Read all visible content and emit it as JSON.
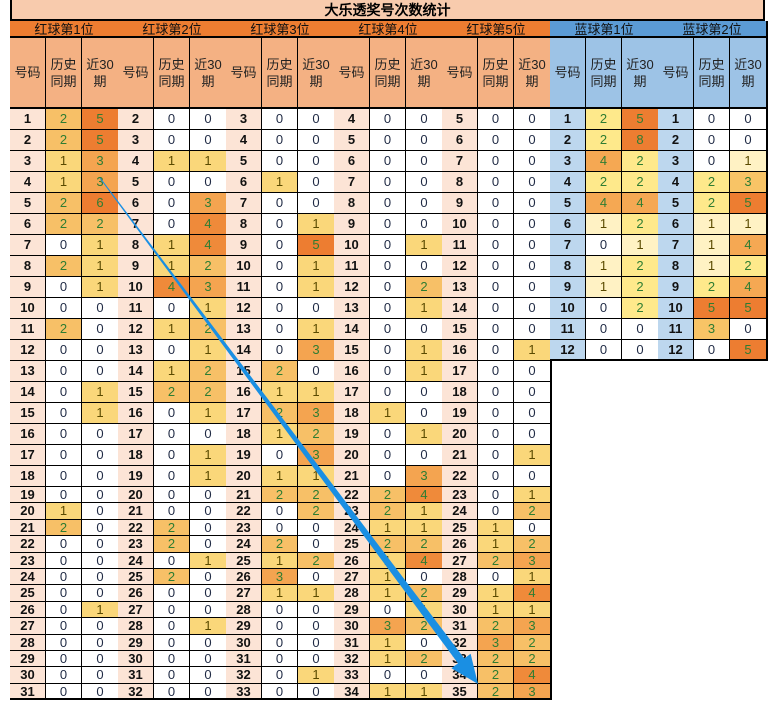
{
  "title": "大乐透奖号次数统计",
  "subheaders": {
    "number": "号码",
    "history": "历史同期",
    "recent": "近30期"
  },
  "colors": {
    "red_header": "#ed7d31",
    "red_subheader": "#f4b183",
    "red_number_bg": "#fce4d6",
    "blue_header": "#5b9bd5",
    "blue_subheader": "#9dc3e6",
    "blue_number_bg": "#bdd7ee",
    "red_scale": [
      "#ffffff",
      "#fad77a",
      "#f7c067",
      "#f4a450",
      "#ef8a3a",
      "#ed7d31"
    ],
    "blue_scale": [
      "#ffffff",
      "#fff2c4",
      "#fee98b",
      "#f8c466",
      "#f5a853",
      "#ed7d31"
    ],
    "text_zero": "#1f2a44",
    "text_one": "#5a4a00",
    "text_many": "#2e7d32",
    "arrow": "#1a8fe3"
  },
  "red_groups": [
    {
      "title": "红球第1位",
      "nums": [
        "1",
        "2",
        "3",
        "4",
        "5",
        "6",
        "7",
        "8",
        "9",
        "10",
        "11",
        "12",
        "13",
        "14",
        "15",
        "16",
        "17",
        "18",
        "19",
        "20",
        "21",
        "22",
        "23",
        "24",
        "25",
        "26",
        "27",
        "28",
        "29",
        "30",
        "31"
      ],
      "history": [
        2,
        2,
        1,
        1,
        2,
        2,
        0,
        2,
        0,
        0,
        2,
        0,
        0,
        0,
        0,
        0,
        0,
        0,
        0,
        1,
        2,
        0,
        0,
        0,
        0,
        0,
        0,
        0,
        0,
        0,
        0
      ],
      "recent": [
        5,
        5,
        3,
        3,
        6,
        2,
        1,
        1,
        1,
        0,
        0,
        0,
        0,
        1,
        1,
        0,
        0,
        0,
        0,
        0,
        0,
        0,
        0,
        0,
        0,
        1,
        0,
        0,
        0,
        0,
        0
      ]
    },
    {
      "title": "红球第2位",
      "nums": [
        "2",
        "3",
        "4",
        "5",
        "6",
        "7",
        "8",
        "9",
        "10",
        "11",
        "12",
        "13",
        "14",
        "15",
        "16",
        "17",
        "18",
        "19",
        "20",
        "21",
        "22",
        "23",
        "24",
        "25",
        "26",
        "27",
        "28",
        "29",
        "30",
        "31",
        "32"
      ],
      "history": [
        0,
        0,
        1,
        0,
        0,
        0,
        1,
        1,
        4,
        0,
        1,
        0,
        1,
        2,
        0,
        0,
        0,
        0,
        0,
        0,
        2,
        2,
        0,
        2,
        0,
        0,
        0,
        0,
        0,
        0,
        0
      ],
      "recent": [
        0,
        0,
        1,
        0,
        3,
        4,
        4,
        2,
        3,
        1,
        2,
        1,
        2,
        2,
        1,
        0,
        1,
        1,
        0,
        0,
        0,
        0,
        1,
        0,
        0,
        0,
        1,
        0,
        0,
        0,
        0
      ]
    },
    {
      "title": "红球第3位",
      "nums": [
        "3",
        "4",
        "5",
        "6",
        "7",
        "8",
        "9",
        "10",
        "11",
        "12",
        "13",
        "14",
        "15",
        "16",
        "17",
        "18",
        "19",
        "20",
        "21",
        "22",
        "23",
        "24",
        "25",
        "26",
        "27",
        "28",
        "29",
        "30",
        "31",
        "32",
        "33"
      ],
      "history": [
        0,
        0,
        0,
        1,
        0,
        0,
        0,
        0,
        0,
        0,
        0,
        0,
        2,
        1,
        2,
        1,
        0,
        1,
        2,
        0,
        0,
        2,
        1,
        3,
        1,
        0,
        0,
        0,
        0,
        0,
        0
      ],
      "recent": [
        0,
        0,
        0,
        0,
        0,
        1,
        5,
        1,
        1,
        0,
        1,
        3,
        0,
        1,
        3,
        2,
        3,
        1,
        2,
        2,
        0,
        0,
        2,
        0,
        1,
        0,
        0,
        0,
        0,
        1,
        0
      ]
    },
    {
      "title": "红球第4位",
      "nums": [
        "4",
        "5",
        "6",
        "7",
        "8",
        "9",
        "10",
        "11",
        "12",
        "13",
        "14",
        "15",
        "16",
        "17",
        "18",
        "19",
        "20",
        "21",
        "22",
        "23",
        "24",
        "25",
        "26",
        "27",
        "28",
        "29",
        "30",
        "31",
        "32",
        "33",
        "34"
      ],
      "history": [
        0,
        0,
        0,
        0,
        0,
        0,
        0,
        0,
        0,
        0,
        0,
        0,
        0,
        0,
        1,
        0,
        0,
        0,
        2,
        2,
        1,
        2,
        1,
        1,
        1,
        0,
        3,
        1,
        1,
        0,
        1
      ],
      "recent": [
        0,
        0,
        0,
        0,
        0,
        0,
        1,
        0,
        2,
        1,
        0,
        1,
        1,
        0,
        0,
        1,
        0,
        3,
        4,
        1,
        1,
        2,
        4,
        0,
        2,
        1,
        2,
        0,
        2,
        0,
        1
      ]
    },
    {
      "title": "红球第5位",
      "nums": [
        "5",
        "6",
        "7",
        "8",
        "9",
        "10",
        "11",
        "12",
        "13",
        "14",
        "15",
        "16",
        "17",
        "18",
        "19",
        "20",
        "21",
        "22",
        "23",
        "24",
        "25",
        "26",
        "27",
        "28",
        "29",
        "30",
        "31",
        "32",
        "33",
        "34",
        "35"
      ],
      "history": [
        0,
        0,
        0,
        0,
        0,
        0,
        0,
        0,
        0,
        0,
        0,
        0,
        0,
        0,
        0,
        0,
        0,
        0,
        0,
        0,
        1,
        1,
        2,
        0,
        1,
        1,
        2,
        3,
        2,
        2,
        2
      ],
      "recent": [
        0,
        0,
        0,
        0,
        0,
        0,
        0,
        0,
        0,
        0,
        0,
        1,
        0,
        0,
        0,
        0,
        1,
        0,
        1,
        2,
        0,
        2,
        3,
        1,
        4,
        1,
        3,
        2,
        2,
        4,
        3
      ]
    }
  ],
  "blue_groups": [
    {
      "title": "蓝球第1位",
      "nums": [
        "1",
        "2",
        "3",
        "4",
        "5",
        "6",
        "7",
        "8",
        "9",
        "10",
        "11",
        "12"
      ],
      "history": [
        2,
        2,
        4,
        2,
        4,
        1,
        0,
        1,
        1,
        0,
        0,
        0
      ],
      "recent": [
        5,
        8,
        2,
        2,
        4,
        2,
        1,
        2,
        2,
        2,
        0,
        0
      ]
    },
    {
      "title": "蓝球第2位",
      "nums": [
        "1",
        "2",
        "3",
        "4",
        "5",
        "6",
        "7",
        "8",
        "9",
        "10",
        "11",
        "12"
      ],
      "history": [
        0,
        0,
        0,
        2,
        2,
        1,
        1,
        1,
        2,
        5,
        3,
        0
      ],
      "recent": [
        0,
        0,
        1,
        3,
        5,
        1,
        4,
        2,
        4,
        5,
        0,
        5
      ]
    }
  ]
}
